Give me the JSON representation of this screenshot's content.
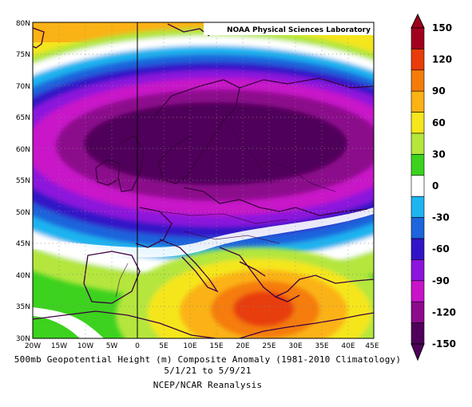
{
  "credit": "NOAA Physical Sciences Laboratory",
  "caption": {
    "line1": "500mb Geopotential Height (m) Composite Anomaly (1981-2010 Climatology)",
    "line2": "5/1/21  to 5/9/21",
    "line3": "NCEP/NCAR Reanalysis"
  },
  "axes": {
    "lon_ticks": [
      "20W",
      "15W",
      "10W",
      "5W",
      "0",
      "5E",
      "10E",
      "15E",
      "20E",
      "25E",
      "30E",
      "35E",
      "40E",
      "45E"
    ],
    "lat_ticks": [
      "80N",
      "75N",
      "70N",
      "65N",
      "60N",
      "55N",
      "50N",
      "45N",
      "40N",
      "35N",
      "30N"
    ]
  },
  "colorbar": {
    "labels": [
      "150",
      "120",
      "90",
      "60",
      "30",
      "0",
      "-30",
      "-60",
      "-90",
      "-120",
      "-150"
    ],
    "colors": [
      "#a0001e",
      "#e83c0a",
      "#f57c0a",
      "#fbb214",
      "#f5e61e",
      "#b4e63c",
      "#3cd21e",
      "#ffffff",
      "#1eb4f0",
      "#1e64dc",
      "#3214c8",
      "#8c14dc",
      "#c814c8",
      "#8c0a8c",
      "#50005a"
    ]
  },
  "chart_data": {
    "type": "heatmap",
    "title": "500mb Geopotential Height (m) Composite Anomaly (1981-2010 Climatology)",
    "subtitle": "5/1/21  to 5/9/21",
    "source": "NCEP/NCAR Reanalysis",
    "xlim": [
      -20,
      45
    ],
    "ylim": [
      30,
      80
    ],
    "x_ticks": [
      "20W",
      "15W",
      "10W",
      "5W",
      "0",
      "5E",
      "10E",
      "15E",
      "20E",
      "25E",
      "30E",
      "35E",
      "40E",
      "45E"
    ],
    "y_ticks": [
      "80N",
      "75N",
      "70N",
      "65N",
      "60N",
      "55N",
      "50N",
      "45N",
      "40N",
      "35N",
      "30N"
    ],
    "colorbar_range": [
      -150,
      150
    ],
    "features": [
      {
        "name": "negative anomaly center",
        "lon": 12,
        "lat": 59,
        "value": -150
      },
      {
        "name": "positive anomaly center",
        "lon": 24,
        "lat": 34,
        "value": 120
      }
    ]
  }
}
